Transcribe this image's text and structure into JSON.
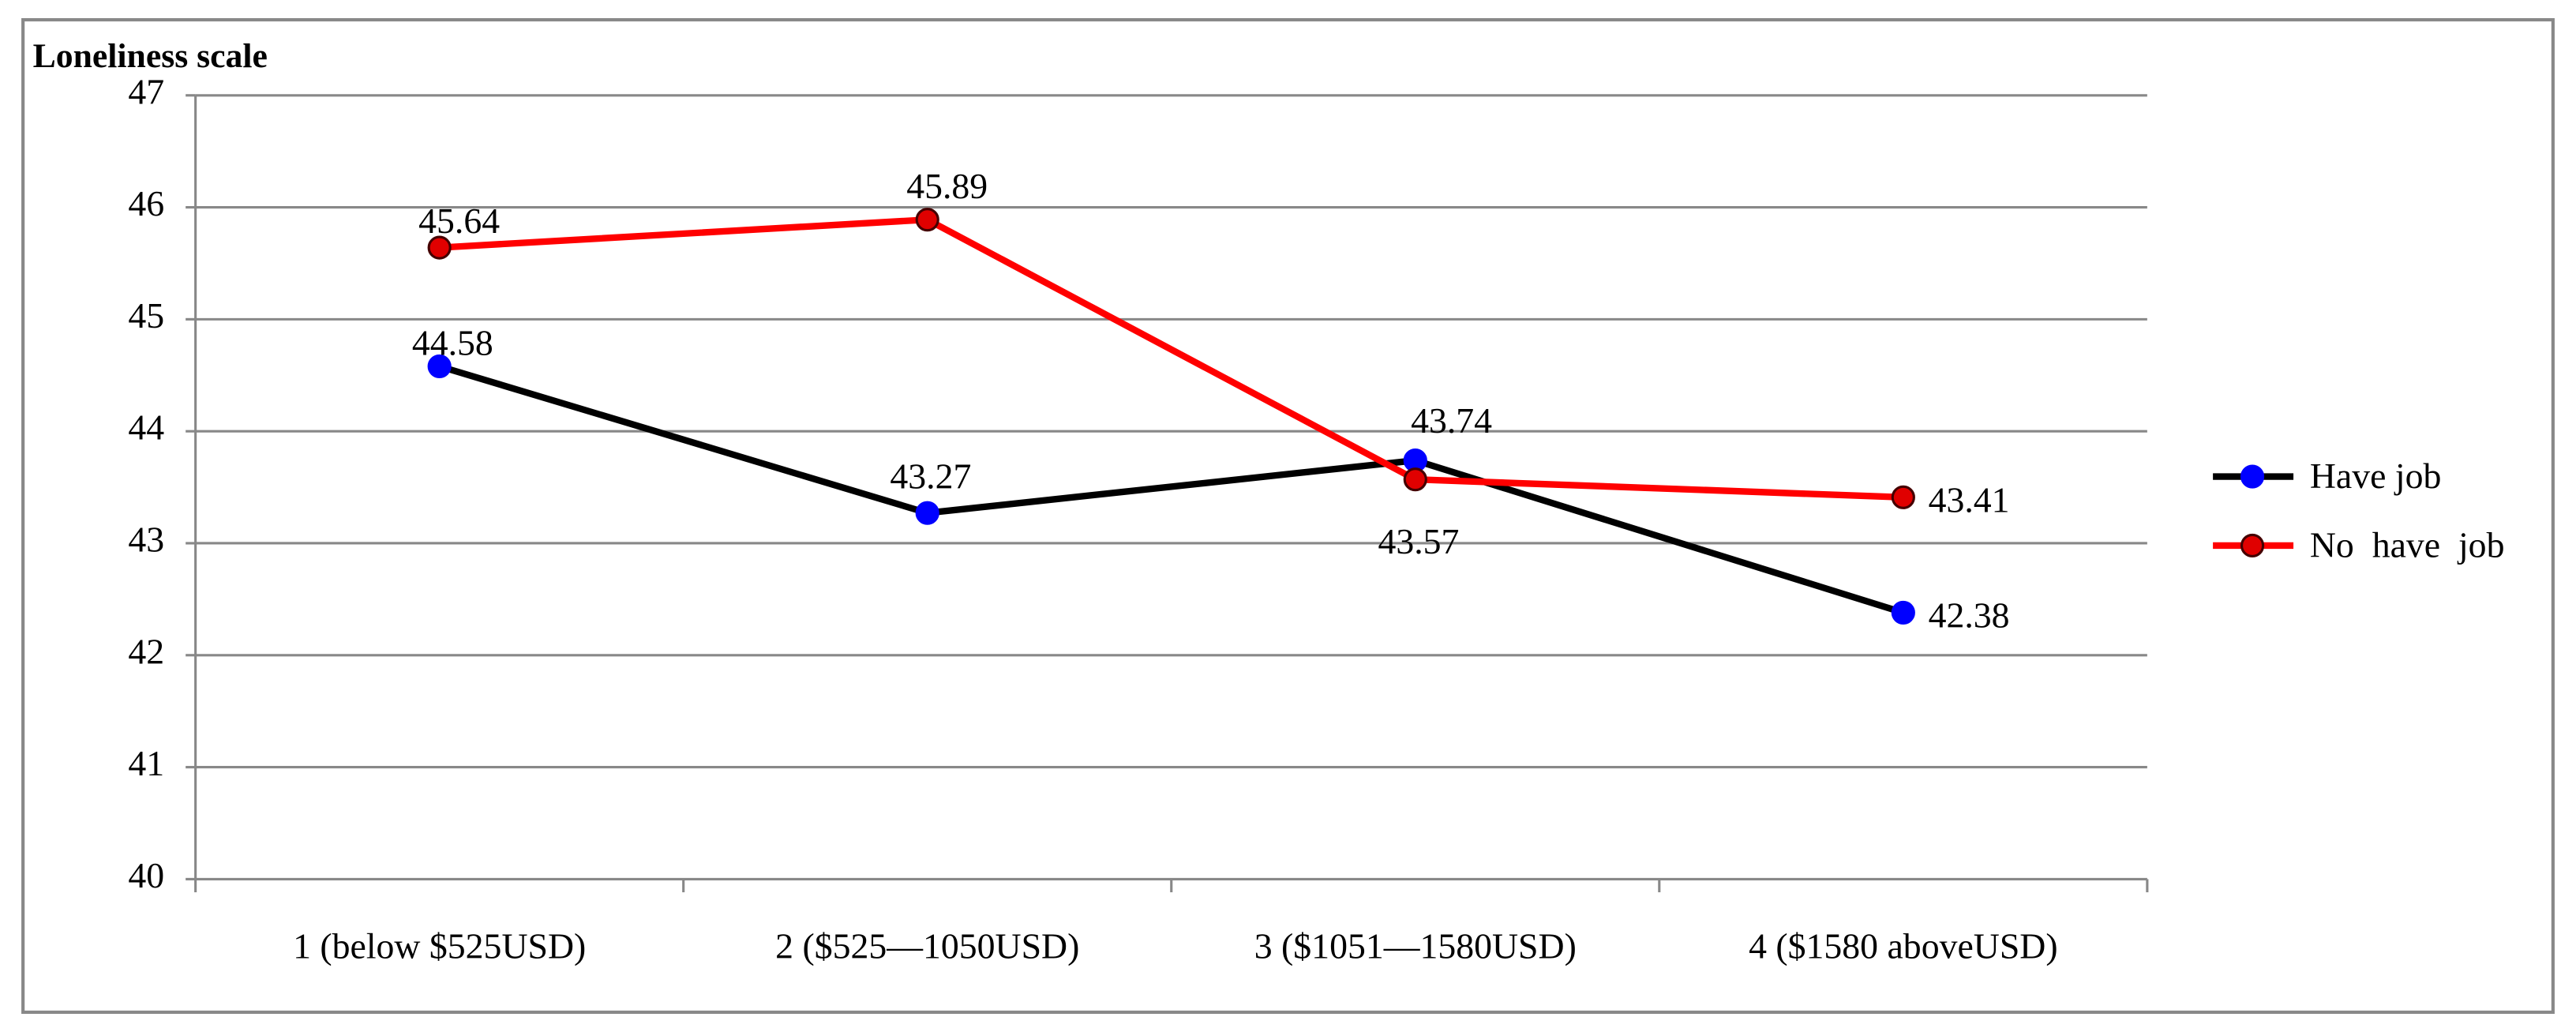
{
  "chart_data": {
    "type": "line",
    "y_label": "Loneliness scale",
    "categories": [
      "1 (below $525USD)",
      "2 ($525—1050USD)",
      "3 ($1051—1580USD)",
      "4 ($1580 aboveUSD)"
    ],
    "series": [
      {
        "name": "Have job",
        "color": "#000000",
        "marker_color": "#0000ff",
        "values": [
          44.58,
          43.27,
          43.74,
          42.38
        ]
      },
      {
        "name": "No  have  job",
        "color": "#ff0000",
        "marker_color": "#e00000",
        "values": [
          45.64,
          45.89,
          43.57,
          43.41
        ]
      }
    ],
    "ylim": [
      40,
      47
    ],
    "yticks": [
      40,
      41,
      42,
      43,
      44,
      45,
      46,
      47
    ],
    "grid": true,
    "legend": "right"
  }
}
